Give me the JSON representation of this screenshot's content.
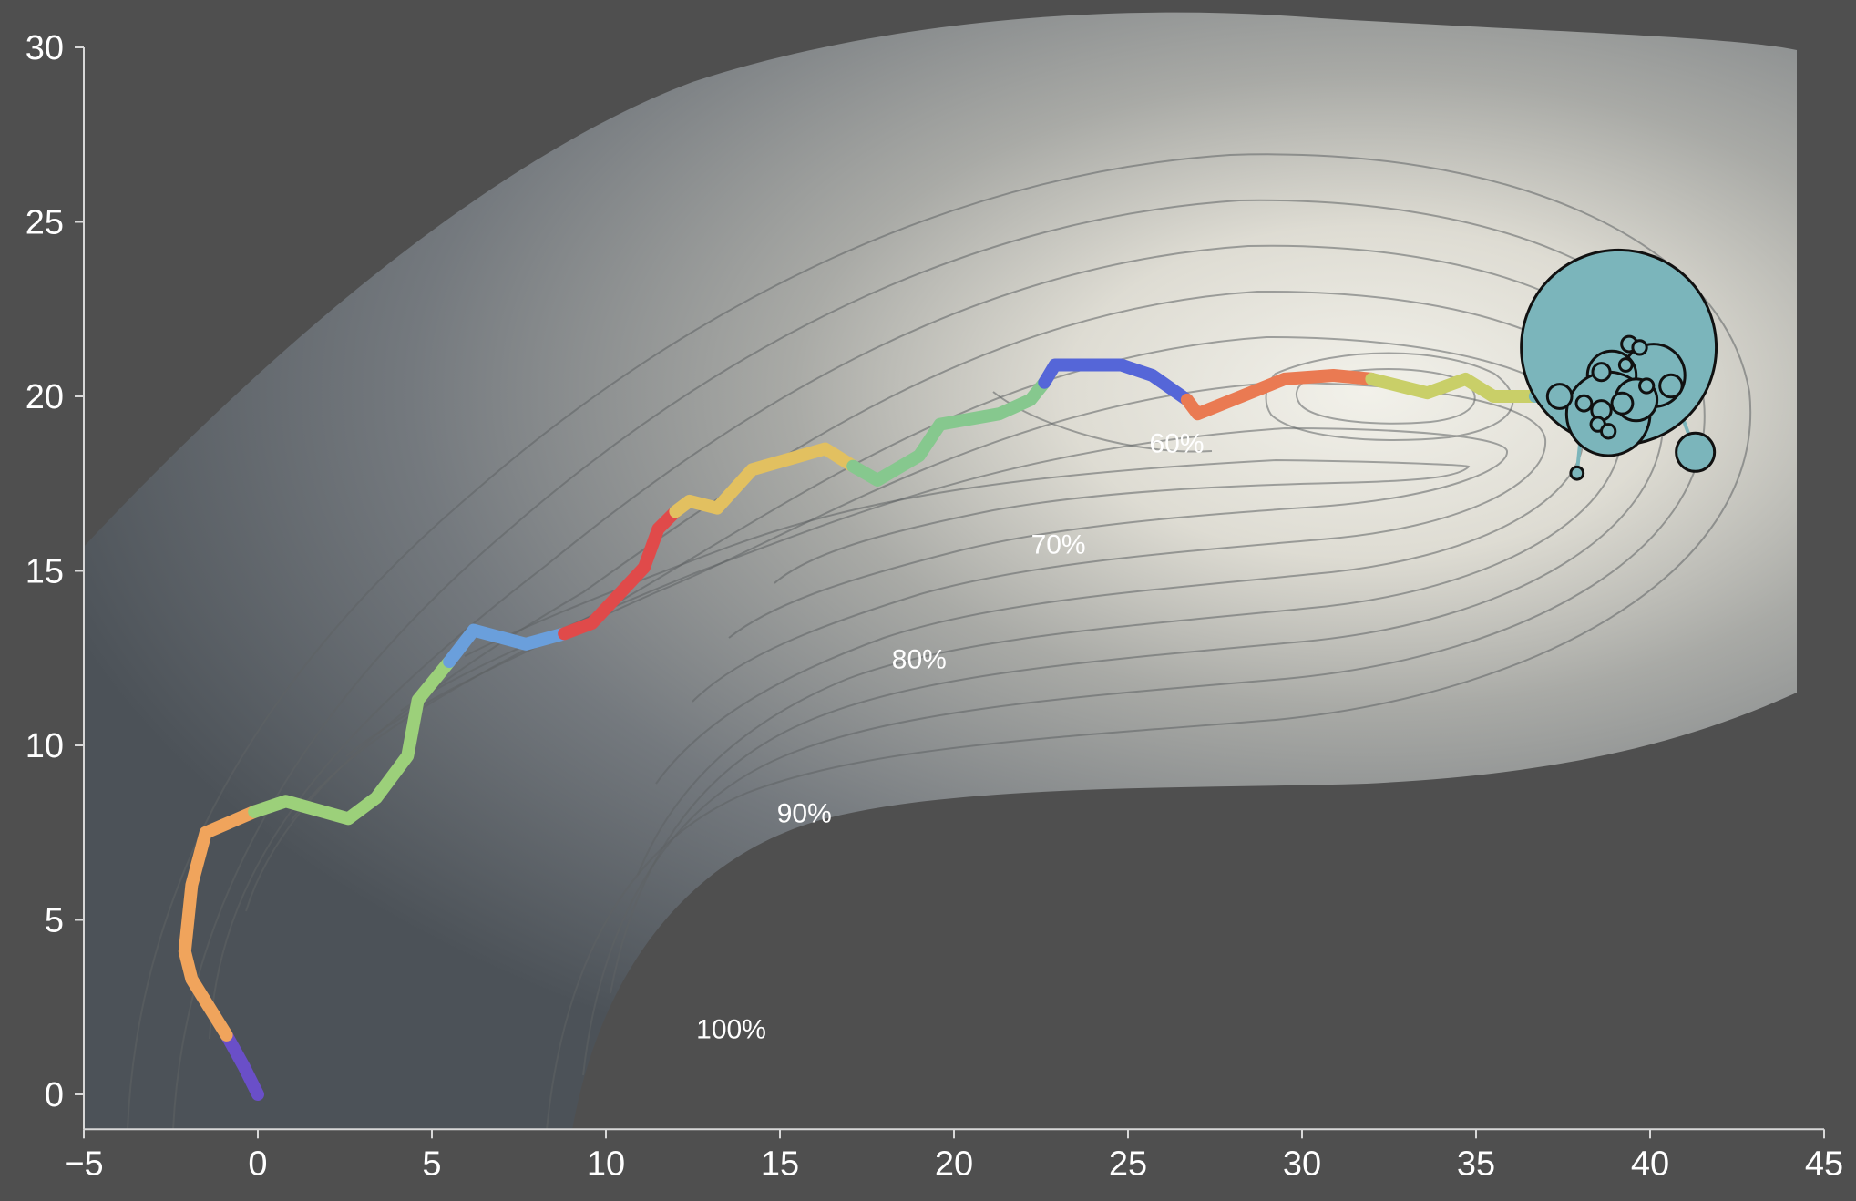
{
  "chart_data": {
    "type": "line",
    "title": "",
    "xlabel": "",
    "ylabel": "",
    "xlim": [
      -5,
      45
    ],
    "ylim": [
      -1,
      30
    ],
    "x_ticks": [
      "−5",
      "0",
      "5",
      "10",
      "15",
      "20",
      "25",
      "30",
      "35",
      "40",
      "45"
    ],
    "x_tick_values": [
      -5,
      0,
      5,
      10,
      15,
      20,
      25,
      30,
      35,
      40,
      45
    ],
    "y_ticks": [
      "0",
      "5",
      "10",
      "15",
      "20",
      "25",
      "30"
    ],
    "y_tick_values": [
      0,
      5,
      10,
      15,
      20,
      25,
      30
    ],
    "grid": false,
    "background_color": "#4f4f4f",
    "contour_labels": [
      {
        "text": "60%",
        "x": 26.4,
        "y": 18.4
      },
      {
        "text": "70%",
        "x": 23.0,
        "y": 15.5
      },
      {
        "text": "80%",
        "x": 19.0,
        "y": 12.2
      },
      {
        "text": "90%",
        "x": 15.7,
        "y": 7.8
      },
      {
        "text": "100%",
        "x": 13.6,
        "y": 1.6
      }
    ],
    "series": [
      {
        "color": "#6a4fc8",
        "points": [
          [
            0.0,
            0.0
          ],
          [
            -0.4,
            0.8
          ],
          [
            -0.9,
            1.7
          ]
        ]
      },
      {
        "color": "#f0a45c",
        "points": [
          [
            -0.9,
            1.7
          ],
          [
            -1.9,
            3.3
          ],
          [
            -2.1,
            4.1
          ],
          [
            -1.9,
            6.0
          ],
          [
            -1.5,
            7.5
          ],
          [
            -0.1,
            8.1
          ]
        ]
      },
      {
        "color": "#9cd07a",
        "points": [
          [
            -0.1,
            8.1
          ],
          [
            0.8,
            8.4
          ],
          [
            2.6,
            7.9
          ],
          [
            3.4,
            8.5
          ],
          [
            4.3,
            9.7
          ],
          [
            4.6,
            11.3
          ],
          [
            5.5,
            12.4
          ]
        ]
      },
      {
        "color": "#6a9fdc",
        "points": [
          [
            5.5,
            12.4
          ],
          [
            6.2,
            13.3
          ],
          [
            7.7,
            12.9
          ],
          [
            8.8,
            13.2
          ]
        ]
      },
      {
        "color": "#e04a4a",
        "points": [
          [
            8.8,
            13.2
          ],
          [
            9.6,
            13.5
          ],
          [
            11.1,
            15.1
          ],
          [
            11.5,
            16.2
          ],
          [
            12.0,
            16.7
          ]
        ]
      },
      {
        "color": "#e2c060",
        "points": [
          [
            12.0,
            16.7
          ],
          [
            12.4,
            17.0
          ],
          [
            13.2,
            16.8
          ],
          [
            14.2,
            17.9
          ],
          [
            16.3,
            18.5
          ],
          [
            17.1,
            18.0
          ]
        ]
      },
      {
        "color": "#86c88e",
        "points": [
          [
            17.1,
            18.0
          ],
          [
            17.8,
            17.6
          ],
          [
            19.0,
            18.3
          ],
          [
            19.6,
            19.2
          ],
          [
            21.3,
            19.5
          ],
          [
            22.2,
            19.9
          ],
          [
            22.6,
            20.4
          ]
        ]
      },
      {
        "color": "#5566d8",
        "points": [
          [
            22.6,
            20.4
          ],
          [
            22.9,
            20.9
          ],
          [
            24.8,
            20.9
          ],
          [
            25.7,
            20.6
          ],
          [
            26.7,
            19.9
          ]
        ]
      },
      {
        "color": "#ea7a52",
        "points": [
          [
            26.7,
            19.9
          ],
          [
            27.0,
            19.5
          ],
          [
            29.5,
            20.5
          ],
          [
            30.9,
            20.6
          ],
          [
            32.0,
            20.5
          ]
        ]
      },
      {
        "color": "#c9cf68",
        "points": [
          [
            32.0,
            20.5
          ],
          [
            33.6,
            20.1
          ],
          [
            34.7,
            20.5
          ],
          [
            35.5,
            20.0
          ],
          [
            36.7,
            20.0
          ]
        ]
      },
      {
        "color": "#77b5be",
        "points": [
          [
            36.7,
            20.0
          ],
          [
            37.3,
            20.0
          ]
        ]
      }
    ],
    "bubbles": {
      "color": "#7bb5bb",
      "points": [
        {
          "x": 39.1,
          "y": 21.4,
          "r": 2.8
        },
        {
          "x": 40.1,
          "y": 20.6,
          "r": 0.9
        },
        {
          "x": 38.9,
          "y": 20.6,
          "r": 0.7
        },
        {
          "x": 38.8,
          "y": 19.5,
          "r": 1.2
        },
        {
          "x": 39.6,
          "y": 19.9,
          "r": 0.6
        },
        {
          "x": 41.3,
          "y": 18.4,
          "r": 0.55
        },
        {
          "x": 37.4,
          "y": 20.0,
          "r": 0.35
        },
        {
          "x": 40.6,
          "y": 20.3,
          "r": 0.32
        },
        {
          "x": 39.2,
          "y": 19.8,
          "r": 0.3
        },
        {
          "x": 38.6,
          "y": 19.6,
          "r": 0.28
        },
        {
          "x": 38.1,
          "y": 19.8,
          "r": 0.22
        },
        {
          "x": 38.6,
          "y": 20.7,
          "r": 0.25
        },
        {
          "x": 39.4,
          "y": 21.5,
          "r": 0.22
        },
        {
          "x": 39.7,
          "y": 21.4,
          "r": 0.2
        },
        {
          "x": 38.5,
          "y": 19.2,
          "r": 0.2
        },
        {
          "x": 38.8,
          "y": 19.0,
          "r": 0.2
        },
        {
          "x": 39.9,
          "y": 20.3,
          "r": 0.2
        },
        {
          "x": 39.3,
          "y": 20.9,
          "r": 0.18
        },
        {
          "x": 37.9,
          "y": 17.8,
          "r": 0.18
        }
      ],
      "links": [
        [
          37.4,
          20.0,
          38.1,
          19.8
        ],
        [
          38.1,
          19.8,
          37.9,
          17.8
        ],
        [
          39.6,
          19.9,
          40.6,
          20.3
        ],
        [
          40.6,
          20.3,
          41.3,
          18.4
        ]
      ]
    }
  }
}
